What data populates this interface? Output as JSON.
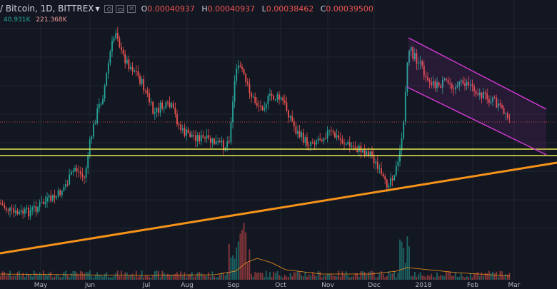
{
  "header": {
    "symbol": "/ Bitcoin, 1D, BITTREX",
    "ohlc": [
      {
        "k": "O",
        "v": "0.00040937"
      },
      {
        "k": "H",
        "v": "0.00040937"
      },
      {
        "k": "L",
        "v": "0.00038462"
      },
      {
        "k": "C",
        "v": "0.00039500"
      }
    ]
  },
  "volume_label": {
    "ma": "40.931K",
    "vol": "221.368K"
  },
  "colors": {
    "background": "#131722",
    "up": "#26a69a",
    "down": "#ef5350",
    "support_line": "#e8e84a",
    "trend_line": "#f7931a",
    "channel": "#d63ad6",
    "volume_ma": "#f7931a"
  },
  "chart_data": {
    "type": "candlestick",
    "x_ticks": [
      "May",
      "Jun",
      "Jul",
      "Aug",
      "Sep",
      "Oct",
      "Nov",
      "Dec",
      "2018",
      "Feb",
      "Mar"
    ],
    "price_high": 0.00040937,
    "price_low": 0.00038462,
    "price_open": 0.00040937,
    "price_close": 0.000395,
    "annotations": [
      "horizontal support zone (two yellow lines)",
      "rising orange trendline",
      "descending purple channel"
    ],
    "grid": true
  }
}
